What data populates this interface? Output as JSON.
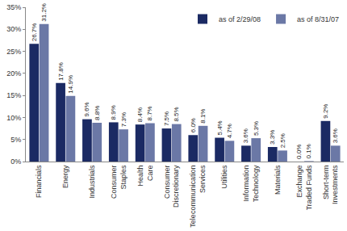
{
  "chart_data": {
    "type": "bar",
    "categories": [
      "Financials",
      "Energy",
      "Industrials",
      "Consumer Staples",
      "Health Care",
      "Consumer Discretionary",
      "Telecommunication Services",
      "Utilities",
      "Information Technology",
      "Materials",
      "Exchange Traded Funds",
      "Short-term Investments"
    ],
    "series": [
      {
        "name": "as of 2/29/08",
        "color": "#1b2a63",
        "values": [
          26.7,
          17.8,
          9.6,
          8.9,
          8.4,
          7.5,
          6.0,
          5.4,
          3.6,
          3.3,
          0.0,
          9.2
        ],
        "value_labels": [
          "26.7%",
          "17.8%",
          "9.6%",
          "8.9%",
          "8.4%",
          "7.5%",
          "6.0%",
          "5.4%",
          "3.6%",
          "3.3%",
          "0.0%",
          "9.2%"
        ]
      },
      {
        "name": "as of 8/31/07",
        "color": "#6b78a6",
        "values": [
          31.2,
          14.9,
          8.8,
          7.3,
          8.7,
          8.5,
          8.1,
          4.7,
          5.3,
          2.5,
          0.1,
          3.6
        ],
        "value_labels": [
          "31.2%",
          "14.9%",
          "8.8%",
          "7.3%",
          "8.7%",
          "8.5%",
          "8.1%",
          "4.7%",
          "5.3%",
          "2.5%",
          "0.1%",
          "3.6%"
        ]
      }
    ],
    "ylim": [
      0,
      35
    ],
    "yticks": [
      {
        "value": 0,
        "label": "0%"
      },
      {
        "value": 5,
        "label": "5%"
      },
      {
        "value": 10,
        "label": "10%"
      },
      {
        "value": 15,
        "label": "15%"
      },
      {
        "value": 20,
        "label": "20%"
      },
      {
        "value": 25,
        "label": "25%"
      },
      {
        "value": 30,
        "label": "30%"
      },
      {
        "value": 35,
        "label": "35%"
      }
    ],
    "grid": false,
    "legend": "top right",
    "data_labels": true
  }
}
